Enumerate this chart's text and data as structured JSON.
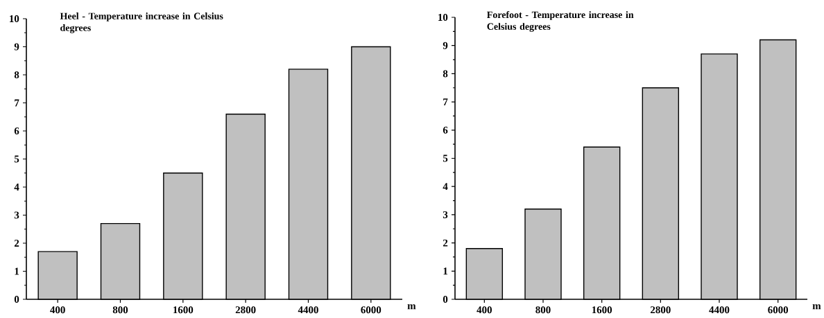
{
  "chart_data": [
    {
      "type": "bar",
      "title": "Heel - Temperature increase in Celsius degrees",
      "xlabel": "m",
      "categories": [
        "400",
        "800",
        "1600",
        "2800",
        "4400",
        "6000"
      ],
      "values": [
        1.7,
        2.7,
        4.5,
        6.6,
        8.2,
        9.0
      ],
      "color": "#c0c0c0",
      "ylim": [
        0,
        10
      ],
      "yticks": [
        0,
        1,
        2,
        3,
        4,
        5,
        6,
        7,
        8,
        9,
        10
      ]
    },
    {
      "type": "bar",
      "title": "Forefoot - Temperature increase in Celsius degrees",
      "xlabel": "m",
      "categories": [
        "400",
        "800",
        "1600",
        "2800",
        "4400",
        "6000"
      ],
      "values": [
        1.8,
        3.2,
        5.4,
        7.5,
        8.7,
        9.2
      ],
      "color": "#c0c0c0",
      "ylim": [
        0,
        10
      ],
      "yticks": [
        0,
        1,
        2,
        3,
        4,
        5,
        6,
        7,
        8,
        9,
        10
      ]
    }
  ]
}
